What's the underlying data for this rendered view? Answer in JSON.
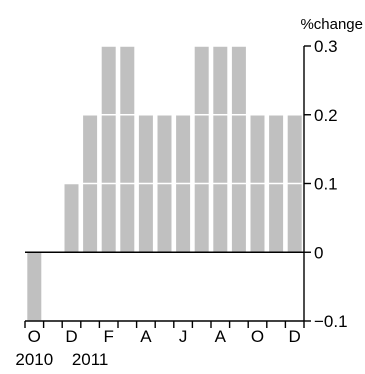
{
  "chart_data": {
    "type": "bar",
    "title": "",
    "xlabel": "",
    "ylabel": "%change",
    "ylim": [
      -0.1,
      0.3
    ],
    "y_ticks": [
      -0.1,
      0,
      0.1,
      0.2,
      0.3
    ],
    "y_tick_labels": [
      "−0.1",
      "0",
      "0.1",
      "0.2",
      "0.3"
    ],
    "y_axis_side": "right",
    "categories": [
      "Oct 2010",
      "Nov 2010",
      "Dec 2010",
      "Jan 2011",
      "Feb 2011",
      "Mar 2011",
      "Apr 2011",
      "May 2011",
      "Jun 2011",
      "Jul 2011",
      "Aug 2011",
      "Sep 2011",
      "Oct 2011",
      "Nov 2011",
      "Dec 2011"
    ],
    "x_tick_labels": [
      "O",
      "",
      "D",
      "",
      "F",
      "",
      "A",
      "",
      "J",
      "",
      "A",
      "",
      "O",
      "",
      "D"
    ],
    "year_labels": [
      {
        "category": "Oct 2010",
        "label": "2010"
      },
      {
        "category": "Jan 2011",
        "label": "2011"
      }
    ],
    "values": [
      -0.1,
      0.0,
      0.1,
      0.2,
      0.3,
      0.3,
      0.2,
      0.2,
      0.2,
      0.3,
      0.3,
      0.3,
      0.2,
      0.2,
      0.2
    ],
    "grid": "white separators at 0.1 intervals across bars",
    "legend": "none",
    "colors": {
      "bar": "#c0c0c0",
      "axis": "#000000",
      "grid_line": "#ffffff"
    }
  }
}
